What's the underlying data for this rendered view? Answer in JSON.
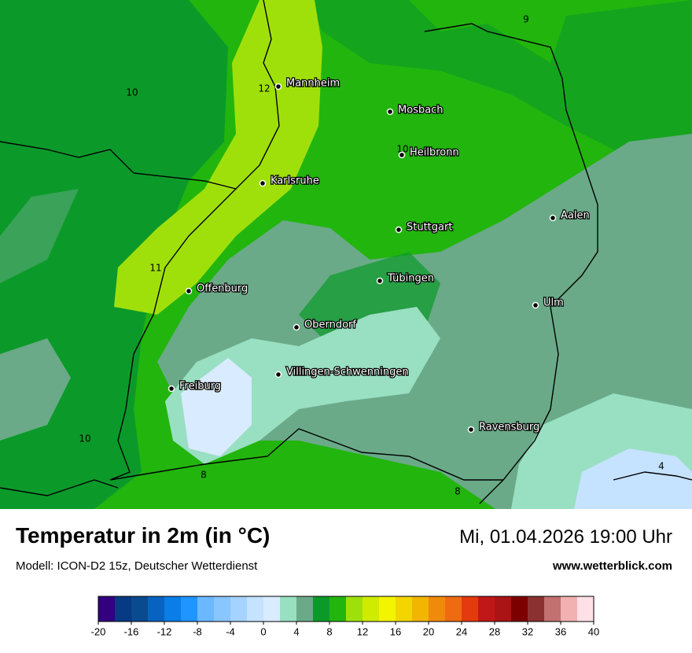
{
  "map": {
    "cities": [
      "Mannheim",
      "Mosbach",
      "Heilbronn",
      "Karlsruhe",
      "Aalen",
      "Stuttgart",
      "Tübingen",
      "Offenburg",
      "Ulm",
      "Oberndorf",
      "Villingen-Schwenningen",
      "Freiburg",
      "Ravensburg"
    ],
    "contour_labels": [
      "9",
      "10",
      "12",
      "10",
      "11",
      "10",
      "8",
      "8",
      "4"
    ]
  },
  "footer": {
    "title": "Temperatur in 2m (in °C)",
    "model": "Modell: ICON-D2 15z, Deutscher Wetterdienst",
    "datetime": "Mi, 01.04.2026 19:00 Uhr",
    "website": "www.wetterblick.com"
  },
  "colorbar": {
    "colors": [
      "#330080",
      "#063a84",
      "#0a4a8f",
      "#0863c0",
      "#0a7ee6",
      "#1f95ff",
      "#6bb8ff",
      "#89c5ff",
      "#a5d3ff",
      "#c5e2ff",
      "#d9ebff",
      "#99dfc2",
      "#6aaa88",
      "#0b9a2a",
      "#22b50d",
      "#a0e00a",
      "#cfeb00",
      "#f3f400",
      "#f3d600",
      "#f2b500",
      "#f08a0a",
      "#ee6b12",
      "#e33a0e",
      "#c01818",
      "#ab1414",
      "#7d0000",
      "#8c3131",
      "#c37070",
      "#f1b1b1",
      "#ffe0e6"
    ],
    "ticks": [
      -20,
      -16,
      -12,
      -8,
      -4,
      0,
      4,
      8,
      12,
      16,
      20,
      24,
      28,
      32,
      36,
      40
    ]
  }
}
